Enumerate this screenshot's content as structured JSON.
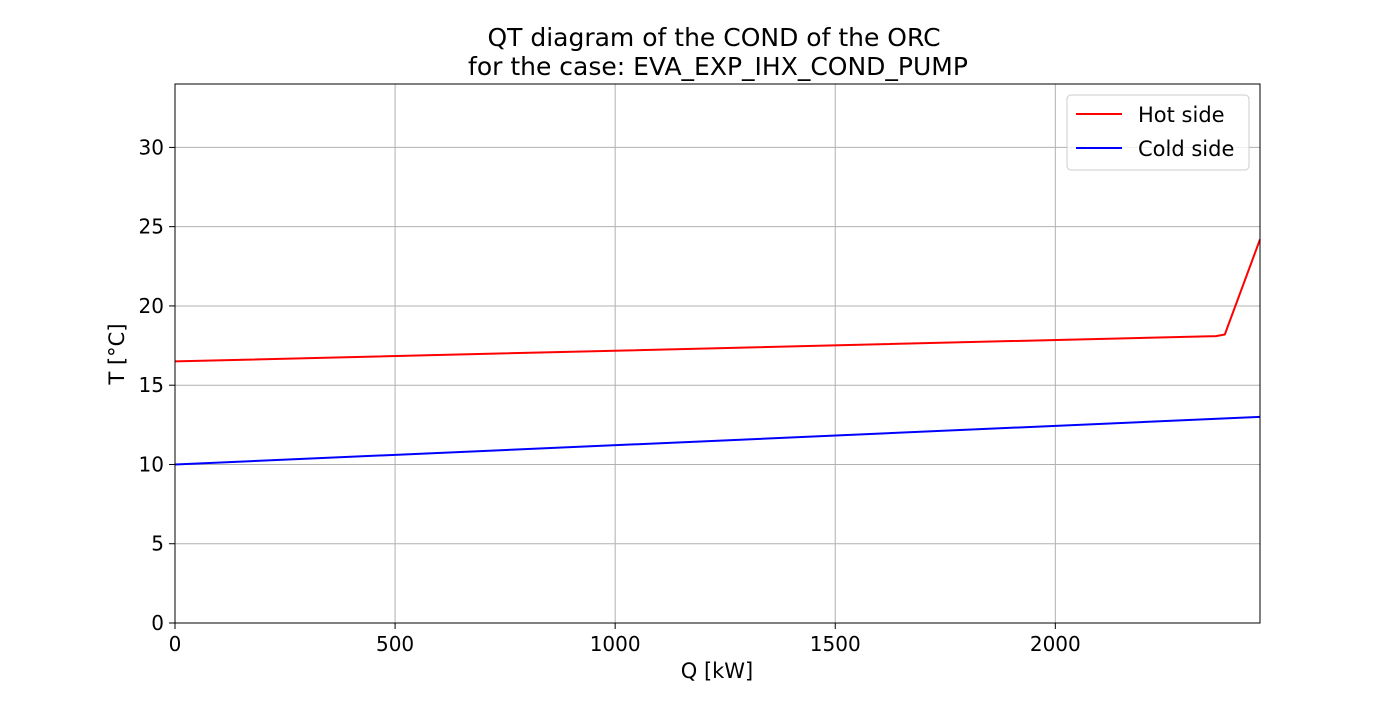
{
  "chart_data": {
    "type": "line",
    "title": "QT diagram of the COND of the ORC",
    "subtitle": "for the case: EVA_EXP_IHX_COND_PUMP",
    "xlabel": "Q [kW]",
    "ylabel": "T [°C]",
    "xlim": [
      0,
      2465
    ],
    "ylim": [
      0,
      34
    ],
    "xticks": [
      0,
      500,
      1000,
      1500,
      2000
    ],
    "yticks": [
      0,
      5,
      10,
      15,
      20,
      25,
      30
    ],
    "grid": true,
    "legend_position": "upper right",
    "series": [
      {
        "name": "Hot side",
        "color": "#ff0000",
        "points": [
          [
            0,
            16.5
          ],
          [
            2365,
            18.1
          ],
          [
            2385,
            18.2
          ],
          [
            2465,
            24.2
          ]
        ]
      },
      {
        "name": "Cold side",
        "color": "#0000ff",
        "points": [
          [
            0,
            10.0
          ],
          [
            2465,
            13.0
          ]
        ]
      }
    ]
  }
}
